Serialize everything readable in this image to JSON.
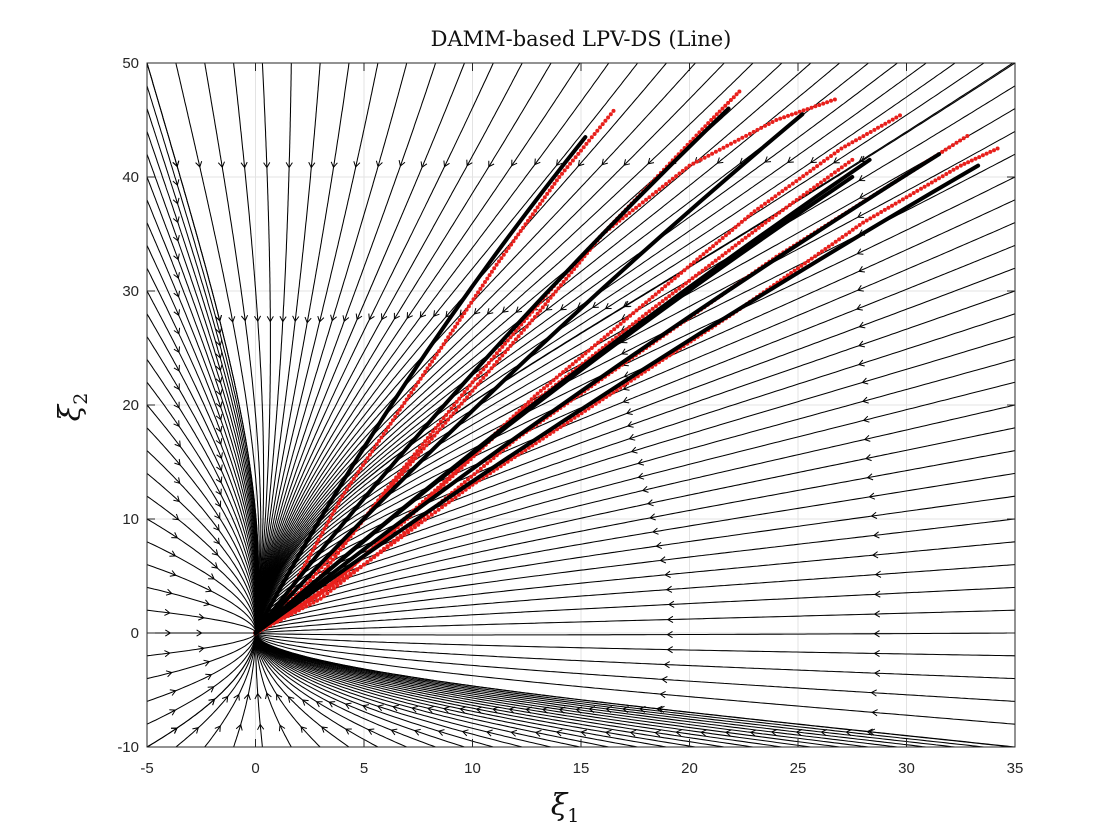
{
  "chart_data": {
    "type": "line",
    "title": "DAMM-based LPV-DS (Line)",
    "xlabel": {
      "symbol": "ξ",
      "subscript": "1"
    },
    "ylabel": {
      "symbol": "ξ",
      "subscript": "2"
    },
    "xlim": [
      -5,
      35
    ],
    "ylim": [
      -10,
      50
    ],
    "xticks": [
      "-5",
      "0",
      "5",
      "10",
      "15",
      "20",
      "25",
      "30",
      "35"
    ],
    "yticks": [
      "-10",
      "0",
      "10",
      "20",
      "30",
      "40",
      "50"
    ],
    "grid": true,
    "box": true,
    "attractor": [
      0,
      0
    ],
    "streamlines": {
      "color": "#000000",
      "arrow_style": "chevron"
    },
    "demonstrations": [
      {
        "points": [
          [
            16.5,
            45.8
          ],
          [
            14.0,
            40.0
          ],
          [
            11.0,
            32.0
          ],
          [
            7.5,
            22.0
          ],
          [
            4.0,
            12.0
          ],
          [
            2.0,
            5.0
          ],
          [
            0.8,
            1.2
          ],
          [
            0,
            0
          ]
        ]
      },
      {
        "points": [
          [
            22.3,
            47.5
          ],
          [
            21.0,
            45.0
          ],
          [
            18.0,
            39.0
          ],
          [
            14.0,
            31.0
          ],
          [
            10.0,
            22.0
          ],
          [
            6.0,
            12.5
          ],
          [
            3.0,
            5.0
          ],
          [
            1.0,
            1.2
          ],
          [
            0,
            0
          ]
        ]
      },
      {
        "points": [
          [
            26.7,
            46.8
          ],
          [
            24.0,
            45.0
          ],
          [
            20.0,
            41.0
          ],
          [
            16.0,
            35.0
          ],
          [
            13.0,
            28.0
          ],
          [
            9.0,
            19.0
          ],
          [
            5.0,
            10.0
          ],
          [
            2.0,
            3.5
          ],
          [
            0,
            0
          ]
        ]
      },
      {
        "points": [
          [
            29.7,
            45.4
          ],
          [
            27.0,
            42.5
          ],
          [
            23.0,
            37.0
          ],
          [
            18.0,
            29.0
          ],
          [
            13.0,
            21.0
          ],
          [
            8.0,
            12.0
          ],
          [
            4.0,
            5.0
          ],
          [
            1.0,
            1.0
          ],
          [
            0,
            0
          ]
        ]
      },
      {
        "points": [
          [
            27.5,
            41.5
          ],
          [
            23.5,
            36.0
          ],
          [
            18.0,
            28.0
          ],
          [
            12.0,
            19.0
          ],
          [
            7.0,
            10.0
          ],
          [
            3.0,
            3.5
          ],
          [
            0,
            0
          ]
        ]
      },
      {
        "points": [
          [
            32.8,
            43.6
          ],
          [
            29.0,
            39.0
          ],
          [
            24.0,
            33.0
          ],
          [
            18.0,
            25.0
          ],
          [
            12.0,
            17.0
          ],
          [
            7.0,
            9.0
          ],
          [
            3.0,
            3.0
          ],
          [
            0,
            0
          ]
        ]
      },
      {
        "points": [
          [
            34.2,
            42.5
          ],
          [
            32.5,
            41.0
          ],
          [
            28.0,
            36.0
          ],
          [
            22.0,
            28.0
          ],
          [
            16.0,
            20.5
          ],
          [
            10.0,
            13.0
          ],
          [
            5.0,
            6.0
          ],
          [
            1.5,
            1.5
          ],
          [
            0,
            0
          ]
        ]
      }
    ],
    "reproductions": [
      {
        "points": [
          [
            15.2,
            43.5
          ],
          [
            0,
            0
          ]
        ]
      },
      {
        "points": [
          [
            21.8,
            46.0
          ],
          [
            0,
            0
          ]
        ]
      },
      {
        "points": [
          [
            25.2,
            45.5
          ],
          [
            0,
            0
          ]
        ]
      },
      {
        "points": [
          [
            28.3,
            41.5
          ],
          [
            0,
            0
          ]
        ]
      },
      {
        "points": [
          [
            27.5,
            40.0
          ],
          [
            0,
            0
          ]
        ]
      },
      {
        "points": [
          [
            31.5,
            42.0
          ],
          [
            0,
            0
          ]
        ]
      },
      {
        "points": [
          [
            33.3,
            41.0
          ],
          [
            0,
            0
          ]
        ]
      }
    ],
    "demo_color": "#e8201c",
    "repro_color": "#000000"
  }
}
